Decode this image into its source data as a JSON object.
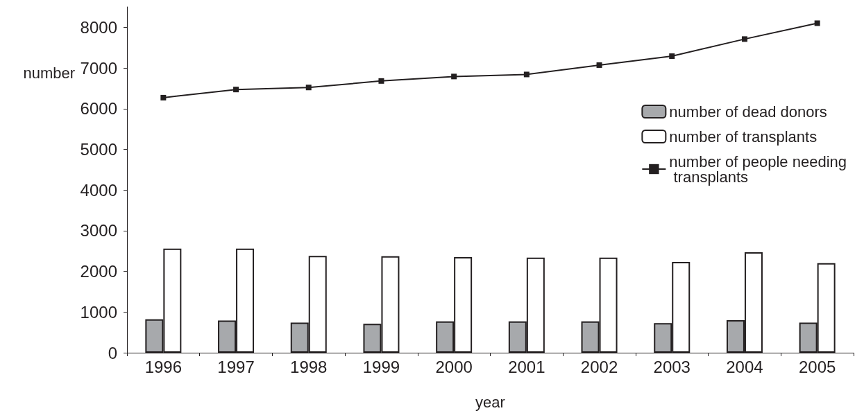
{
  "chart_data": {
    "type": "bar",
    "xlabel": "year",
    "ylabel": "number",
    "categories": [
      "1996",
      "1997",
      "1998",
      "1999",
      "2000",
      "2001",
      "2002",
      "2003",
      "2004",
      "2005"
    ],
    "series": [
      {
        "name": "number of dead donors",
        "color": "#a7a9ac",
        "values": [
          820,
          790,
          740,
          710,
          770,
          770,
          770,
          730,
          800,
          740
        ]
      },
      {
        "name": "number of transplants",
        "color": "#ffffff",
        "values": [
          2560,
          2560,
          2380,
          2370,
          2350,
          2340,
          2340,
          2230,
          2470,
          2200
        ]
      },
      {
        "name": "number of people needing transplants",
        "type": "line",
        "color": "#231f20",
        "marker": "square",
        "values": [
          6270,
          6470,
          6520,
          6680,
          6790,
          6840,
          7070,
          7290,
          7710,
          8100
        ]
      }
    ],
    "ylim": [
      0,
      8500
    ],
    "yticks": [
      0,
      1000,
      2000,
      3000,
      4000,
      5000,
      6000,
      7000,
      8000
    ],
    "grid": false,
    "legend": "right"
  }
}
